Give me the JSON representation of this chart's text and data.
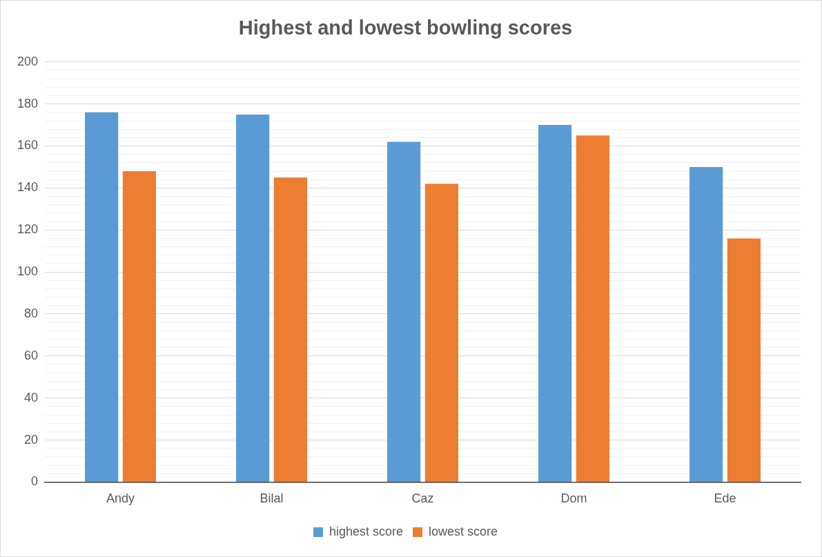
{
  "chart_data": {
    "type": "bar",
    "title": "Highest and lowest bowling scores",
    "categories": [
      "Andy",
      "Bilal",
      "Caz",
      "Dom",
      "Ede"
    ],
    "series": [
      {
        "name": "highest score",
        "color": "#5b9bd5",
        "values": [
          176,
          175,
          162,
          170,
          150
        ]
      },
      {
        "name": "lowest score",
        "color": "#ed7d31",
        "values": [
          148,
          145,
          142,
          165,
          116
        ]
      }
    ],
    "ylim": [
      0,
      200
    ],
    "yticks": [
      0,
      {
        "value": 4,
        "label": null
      },
      {
        "value": 8,
        "label": null
      },
      {
        "value": 12,
        "label": null
      },
      {
        "value": 16,
        "label": null
      },
      20,
      {
        "value": 24,
        "label": null
      },
      {
        "value": 28,
        "label": null
      },
      {
        "value": 32,
        "label": null
      },
      {
        "value": 36,
        "label": null
      },
      40,
      {
        "value": 44,
        "label": null
      },
      {
        "value": 48,
        "label": null
      },
      {
        "value": 52,
        "label": null
      },
      {
        "value": 56,
        "label": null
      },
      60,
      {
        "value": 64,
        "label": null
      },
      {
        "value": 68,
        "label": null
      },
      {
        "value": 72,
        "label": null
      },
      {
        "value": 76,
        "label": null
      },
      80,
      {
        "value": 84,
        "label": null
      },
      {
        "value": 88,
        "label": null
      },
      {
        "value": 92,
        "label": null
      },
      {
        "value": 96,
        "label": null
      },
      100,
      {
        "value": 104,
        "label": null
      },
      {
        "value": 108,
        "label": null
      },
      {
        "value": 112,
        "label": null
      },
      {
        "value": 116,
        "label": null
      },
      120,
      {
        "value": 124,
        "label": null
      },
      {
        "value": 128,
        "label": null
      },
      {
        "value": 132,
        "label": null
      },
      {
        "value": 136,
        "label": null
      },
      140,
      {
        "value": 144,
        "label": null
      },
      {
        "value": 148,
        "label": null
      },
      {
        "value": 152,
        "label": null
      },
      {
        "value": 156,
        "label": null
      },
      160,
      {
        "value": 164,
        "label": null
      },
      {
        "value": 168,
        "label": null
      },
      {
        "value": 172,
        "label": null
      },
      {
        "value": 176,
        "label": null
      },
      180,
      {
        "value": 184,
        "label": null
      },
      {
        "value": 188,
        "label": null
      },
      {
        "value": 192,
        "label": null
      },
      {
        "value": 196,
        "label": null
      },
      200
    ],
    "grid": true,
    "legend": "bottom"
  }
}
